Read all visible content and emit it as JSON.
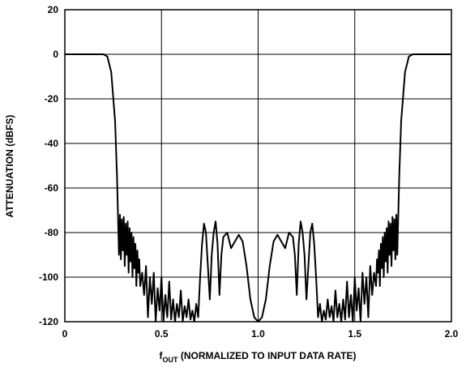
{
  "chart_data": {
    "type": "line",
    "y_label": "ATTENUATION (dBFS)",
    "x_label": {
      "main": "f",
      "sub": "OUT",
      "rest": " (NORMALIZED TO INPUT DATA RATE)"
    },
    "xlim": [
      0,
      2
    ],
    "xticks": [
      0,
      0.5,
      {
        "value": 1,
        "label": "1.0"
      },
      1.5,
      {
        "value": 2,
        "label": "2.0"
      }
    ],
    "ylim": [
      -120,
      20
    ],
    "yticks": [
      20,
      0,
      -20,
      -40,
      -60,
      -80,
      -100,
      -120
    ],
    "grid": true,
    "series": [
      {
        "color": "#000000",
        "x": [
          0,
          0.2,
          0.22,
          0.24,
          0.26,
          0.27,
          0.28,
          0.285,
          0.29,
          0.295,
          0.3,
          0.305,
          0.31,
          0.315,
          0.32,
          0.325,
          0.33,
          0.335,
          0.34,
          0.345,
          0.35,
          0.355,
          0.36,
          0.365,
          0.37,
          0.375,
          0.38,
          0.385,
          0.39,
          0.4,
          0.41,
          0.42,
          0.43,
          0.44,
          0.45,
          0.46,
          0.47,
          0.48,
          0.49,
          0.5,
          0.51,
          0.52,
          0.53,
          0.54,
          0.55,
          0.56,
          0.57,
          0.58,
          0.59,
          0.6,
          0.61,
          0.62,
          0.63,
          0.64,
          0.65,
          0.66,
          0.67,
          0.68,
          0.69,
          0.7,
          0.71,
          0.72,
          0.73,
          0.74,
          0.75,
          0.76,
          0.77,
          0.78,
          0.79,
          0.8,
          0.81,
          0.82,
          0.84,
          0.86,
          0.88,
          0.9,
          0.92,
          0.94,
          0.96,
          0.98,
          1,
          1.02,
          1.04,
          1.06,
          1.08,
          1.1,
          1.12,
          1.14,
          1.16,
          1.18,
          1.19,
          1.2,
          1.21,
          1.22,
          1.23,
          1.24,
          1.25,
          1.26,
          1.27,
          1.28,
          1.29,
          1.3,
          1.31,
          1.32,
          1.33,
          1.34,
          1.35,
          1.36,
          1.37,
          1.38,
          1.39,
          1.4,
          1.41,
          1.42,
          1.43,
          1.44,
          1.45,
          1.46,
          1.47,
          1.48,
          1.49,
          1.5,
          1.51,
          1.52,
          1.53,
          1.54,
          1.55,
          1.56,
          1.57,
          1.58,
          1.59,
          1.6,
          1.61,
          1.615,
          1.62,
          1.625,
          1.63,
          1.635,
          1.64,
          1.645,
          1.65,
          1.655,
          1.66,
          1.665,
          1.67,
          1.675,
          1.68,
          1.685,
          1.69,
          1.695,
          1.7,
          1.705,
          1.71,
          1.715,
          1.72,
          1.73,
          1.74,
          1.76,
          1.78,
          1.8,
          2
        ],
        "values": [
          0,
          0,
          -1,
          -8,
          -30,
          -55,
          -90,
          -72,
          -92,
          -74,
          -88,
          -73,
          -95,
          -76,
          -90,
          -75,
          -98,
          -78,
          -93,
          -80,
          -100,
          -82,
          -96,
          -85,
          -104,
          -88,
          -98,
          -92,
          -104,
          -98,
          -108,
          -95,
          -118,
          -100,
          -112,
          -98,
          -120,
          -105,
          -115,
          -100,
          -120,
          -108,
          -118,
          -102,
          -119,
          -110,
          -120,
          -112,
          -118,
          -106,
          -120,
          -113,
          -118,
          -110,
          -119,
          -115,
          -120,
          -112,
          -118,
          -100,
          -85,
          -76,
          -80,
          -95,
          -110,
          -90,
          -80,
          -75,
          -85,
          -108,
          -90,
          -82,
          -80,
          -87,
          -84,
          -81,
          -84,
          -95,
          -110,
          -118,
          -120,
          -118,
          -110,
          -95,
          -84,
          -81,
          -84,
          -87,
          -80,
          -82,
          -90,
          -108,
          -85,
          -75,
          -80,
          -90,
          -110,
          -95,
          -80,
          -76,
          -85,
          -100,
          -118,
          -112,
          -120,
          -115,
          -119,
          -110,
          -118,
          -113,
          -120,
          -106,
          -118,
          -112,
          -120,
          -110,
          -119,
          -102,
          -118,
          -108,
          -120,
          -100,
          -115,
          -105,
          -120,
          -98,
          -112,
          -100,
          -118,
          -95,
          -108,
          -98,
          -104,
          -92,
          -98,
          -88,
          -104,
          -85,
          -96,
          -82,
          -100,
          -80,
          -93,
          -78,
          -98,
          -75,
          -90,
          -76,
          -95,
          -73,
          -88,
          -74,
          -92,
          -72,
          -90,
          -55,
          -30,
          -8,
          -1,
          0,
          0
        ]
      }
    ]
  }
}
